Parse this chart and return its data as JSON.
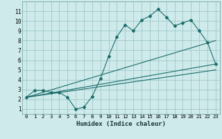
{
  "xlabel": "Humidex (Indice chaleur)",
  "background_color": "#ceeaea",
  "grid_color": "#a0c8c8",
  "line_color": "#1a6b6b",
  "spine_color": "#6a9a9a",
  "xlim": [
    -0.5,
    23.5
  ],
  "ylim": [
    0.5,
    12.0
  ],
  "yticks": [
    1,
    2,
    3,
    4,
    5,
    6,
    7,
    8,
    9,
    10,
    11
  ],
  "xticks": [
    0,
    1,
    2,
    3,
    4,
    5,
    6,
    7,
    8,
    9,
    10,
    11,
    12,
    13,
    14,
    15,
    16,
    17,
    18,
    19,
    20,
    21,
    22,
    23
  ],
  "line1_x": [
    0,
    1,
    2,
    3,
    4,
    5,
    6,
    7,
    8,
    9,
    10,
    11,
    12,
    13,
    14,
    15,
    16,
    17,
    18,
    19,
    20,
    21,
    22,
    23
  ],
  "line1_y": [
    2.2,
    2.9,
    2.9,
    2.7,
    2.7,
    2.2,
    1.0,
    1.2,
    2.3,
    4.1,
    6.4,
    8.4,
    9.6,
    9.0,
    10.1,
    10.5,
    11.2,
    10.4,
    9.5,
    9.8,
    10.1,
    9.0,
    7.8,
    5.6
  ],
  "line2_x": [
    0,
    23
  ],
  "line2_y": [
    2.2,
    5.6
  ],
  "line3_x": [
    0,
    23
  ],
  "line3_y": [
    2.2,
    8.0
  ],
  "line4_x": [
    0,
    23
  ],
  "line4_y": [
    2.2,
    5.0
  ]
}
